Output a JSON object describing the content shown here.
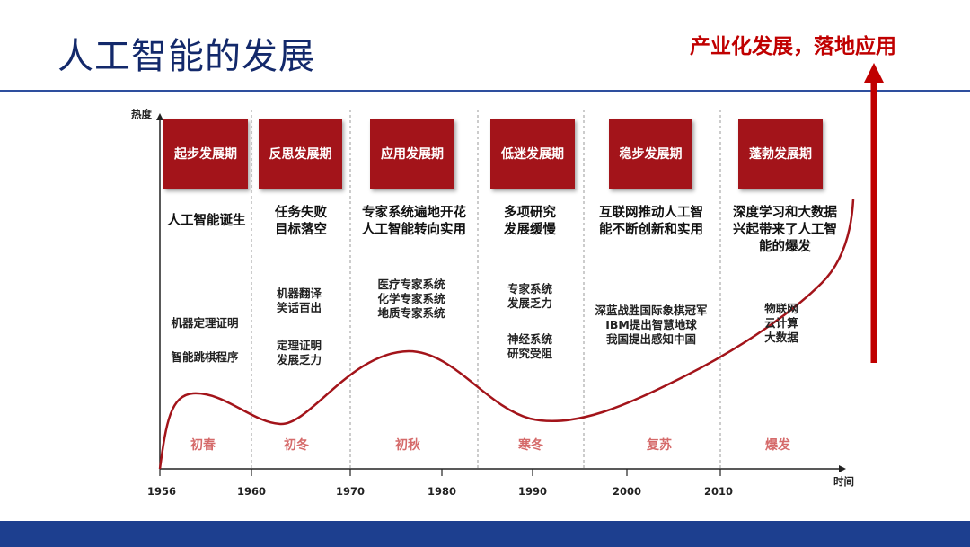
{
  "title": "人工智能的发展",
  "headline": "产业化发展，落地应用",
  "axes": {
    "y_label": "热度",
    "x_label": "时间"
  },
  "years": [
    "1956",
    "1960",
    "1970",
    "1980",
    "1990",
    "2000",
    "2010"
  ],
  "phases": [
    {
      "name": "起步发展期",
      "summary": [
        "人工智能诞生"
      ],
      "notes": [
        "机器定理证明",
        "智能跳棋程序"
      ],
      "season": "初春"
    },
    {
      "name": "反思发展期",
      "summary": [
        "任务失败",
        "目标落空"
      ],
      "notes": [
        "机器翻译",
        "笑话百出",
        "定理证明",
        "发展乏力"
      ],
      "season": "初冬"
    },
    {
      "name": "应用发展期",
      "summary": [
        "专家系统遍地开花",
        "人工智能转向实用"
      ],
      "notes": [
        "医疗专家系统",
        "化学专家系统",
        "地质专家系统"
      ],
      "season": "初秋"
    },
    {
      "name": "低迷发展期",
      "summary": [
        "多项研究",
        "发展缓慢"
      ],
      "notes": [
        "专家系统",
        "发展乏力",
        "神经系统",
        "研究受阻"
      ],
      "season": "寒冬"
    },
    {
      "name": "稳步发展期",
      "summary": [
        "互联网推动人工智",
        "能不断创新和实用"
      ],
      "notes": [
        "深蓝战胜国际象棋冠军",
        "IBM提出智慧地球",
        "我国提出感知中国"
      ],
      "season": "复苏"
    },
    {
      "name": "蓬勃发展期",
      "summary": [
        "深度学习和大数据",
        "兴起带来了人工智",
        "能的爆发"
      ],
      "notes": [
        "物联网",
        "云计算",
        "大数据"
      ],
      "season": "爆发"
    }
  ],
  "colors": {
    "title": "#13296b",
    "accent_red": "#c00000",
    "box_red": "#a3141a",
    "curve": "#a3141a",
    "season": "#d56a6a",
    "footer": "#1d3f8f"
  }
}
